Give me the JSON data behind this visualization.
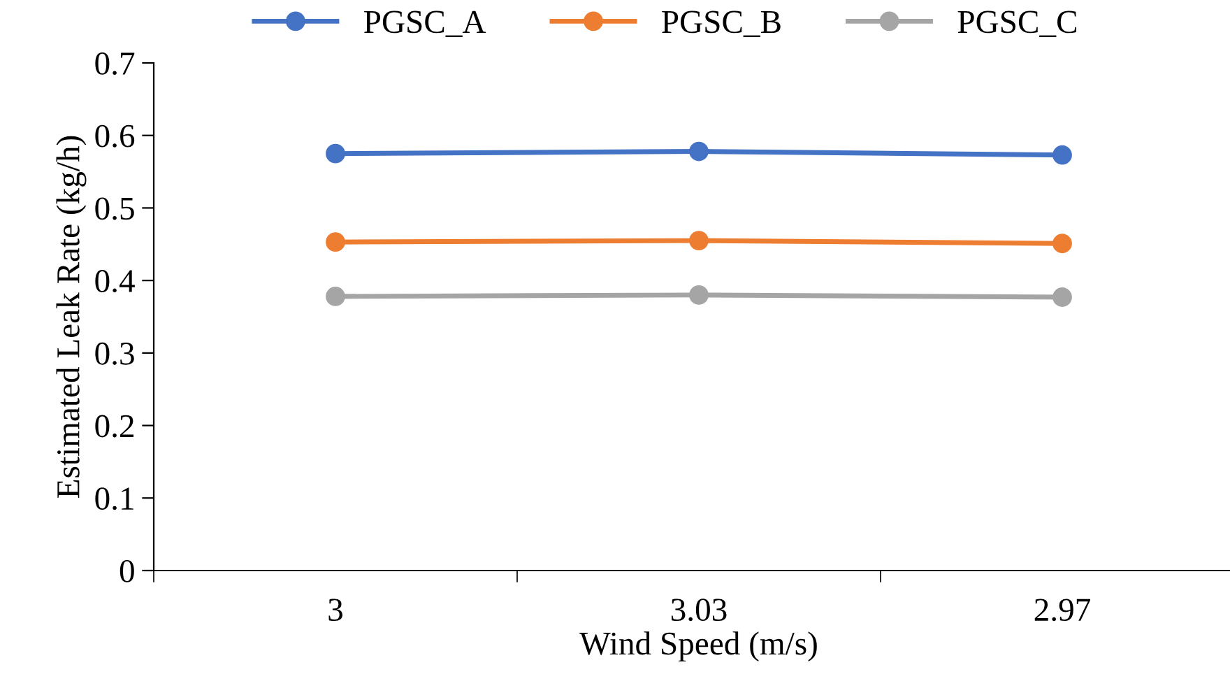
{
  "chart_data": {
    "type": "line",
    "xlabel": "Wind Speed (m/s)",
    "ylabel": "Estimated Leak Rate (kg/h)",
    "categories": [
      "3",
      "3.03",
      "2.97"
    ],
    "series": [
      {
        "name": "PGSC_A",
        "color": "#4472c4",
        "values": [
          0.575,
          0.578,
          0.573
        ]
      },
      {
        "name": "PGSC_B",
        "color": "#ed7d31",
        "values": [
          0.453,
          0.455,
          0.451
        ]
      },
      {
        "name": "PGSC_C",
        "color": "#a5a5a5",
        "values": [
          0.378,
          0.38,
          0.377
        ]
      }
    ],
    "ylim": [
      0,
      0.7
    ],
    "yticks": [
      0,
      0.1,
      0.2,
      0.3,
      0.4,
      0.5,
      0.6,
      0.7
    ],
    "grid": false,
    "legend": "top",
    "marker": "circle",
    "line_style": "solid"
  }
}
